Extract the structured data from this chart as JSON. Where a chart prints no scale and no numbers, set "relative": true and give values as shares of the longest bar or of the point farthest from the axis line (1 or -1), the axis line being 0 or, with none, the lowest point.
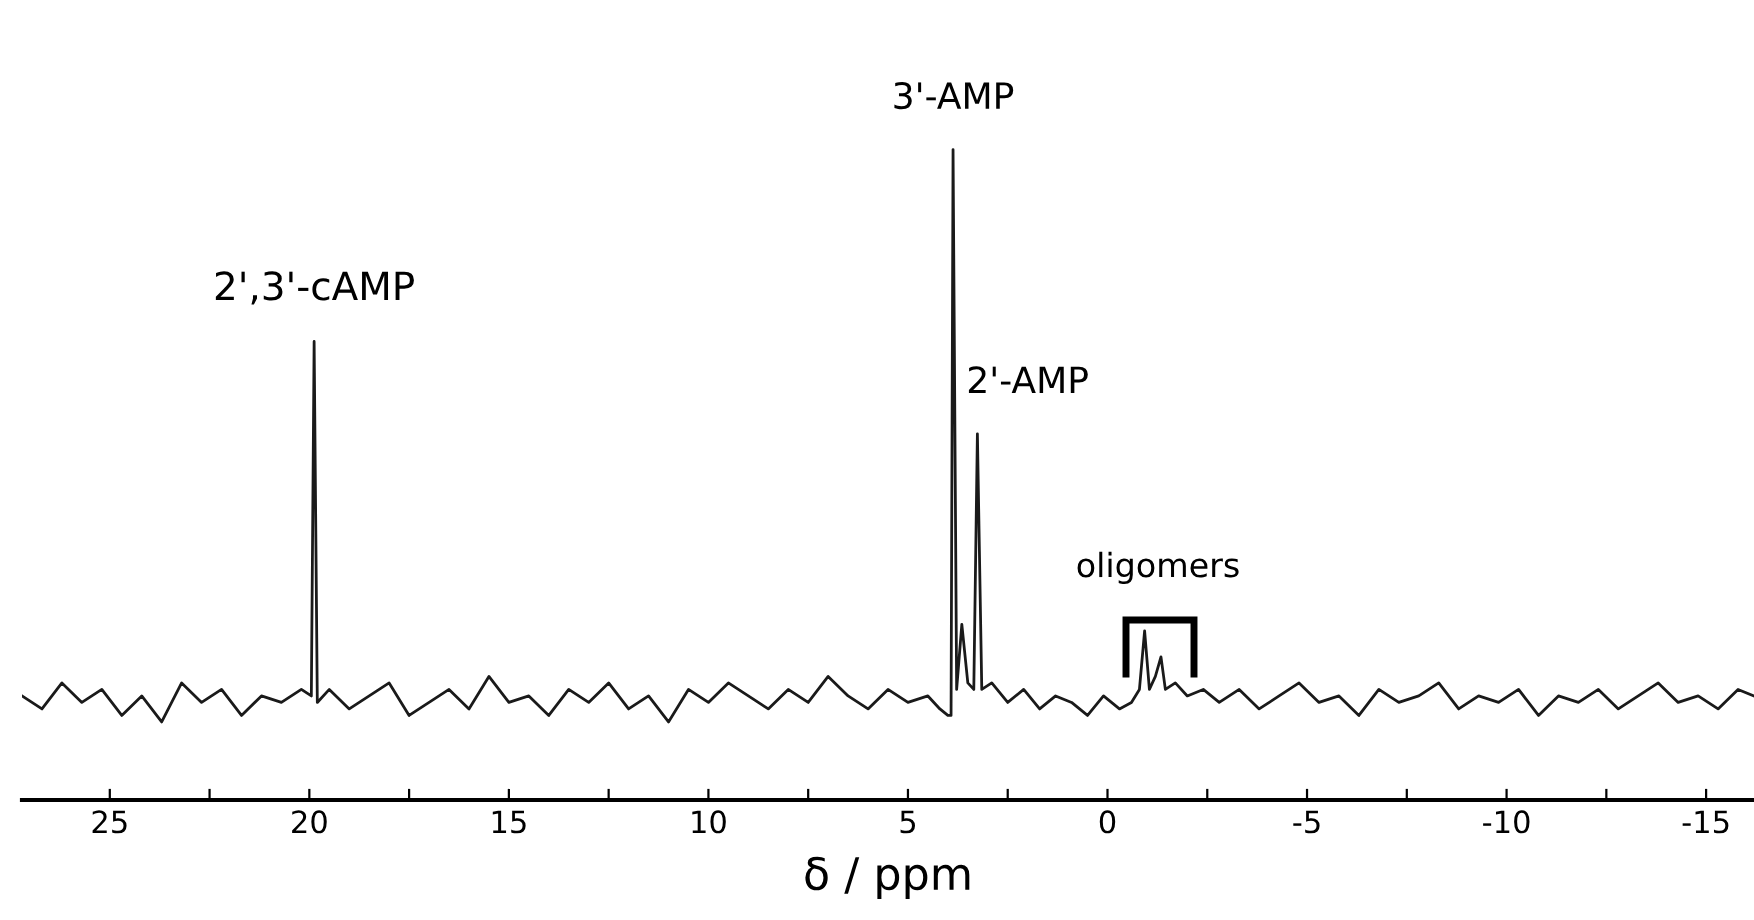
{
  "chart_data": {
    "type": "line",
    "relative": true,
    "xlabel": "δ / ppm",
    "color": "#1a1a1a",
    "x": [
      27.2,
      26.7,
      26.2,
      25.7,
      25.2,
      24.7,
      24.2,
      23.7,
      23.2,
      22.7,
      22.2,
      21.7,
      21.2,
      20.7,
      20.2,
      19.95,
      19.88,
      19.8,
      19.5,
      19.0,
      18.5,
      18.0,
      17.5,
      17.0,
      16.5,
      16.0,
      15.5,
      15.0,
      14.5,
      14.0,
      13.5,
      13.0,
      12.5,
      12.0,
      11.5,
      11.0,
      10.5,
      10.0,
      9.5,
      9.0,
      8.5,
      8.0,
      7.5,
      7.0,
      6.5,
      6.0,
      5.5,
      5.0,
      4.5,
      4.2,
      4.0,
      3.92,
      3.87,
      3.78,
      3.65,
      3.5,
      3.35,
      3.26,
      3.15,
      2.9,
      2.5,
      2.1,
      1.7,
      1.3,
      0.9,
      0.5,
      0.1,
      -0.3,
      -0.6,
      -0.8,
      -0.93,
      -1.05,
      -1.2,
      -1.34,
      -1.45,
      -1.7,
      -2.0,
      -2.4,
      -2.8,
      -3.3,
      -3.8,
      -4.3,
      -4.8,
      -5.3,
      -5.8,
      -6.3,
      -6.8,
      -7.3,
      -7.8,
      -8.3,
      -8.8,
      -9.3,
      -9.8,
      -10.3,
      -10.8,
      -11.3,
      -11.8,
      -12.3,
      -12.8,
      -13.3,
      -13.8,
      -14.3,
      -14.8,
      -15.3,
      -15.8,
      -16.2
    ],
    "values": [
      0.16,
      0.14,
      0.18,
      0.15,
      0.17,
      0.13,
      0.16,
      0.12,
      0.18,
      0.15,
      0.17,
      0.13,
      0.16,
      0.15,
      0.17,
      0.16,
      0.705,
      0.15,
      0.17,
      0.14,
      0.16,
      0.18,
      0.13,
      0.15,
      0.17,
      0.14,
      0.19,
      0.15,
      0.16,
      0.13,
      0.17,
      0.15,
      0.18,
      0.14,
      0.16,
      0.12,
      0.17,
      0.15,
      0.18,
      0.16,
      0.14,
      0.17,
      0.15,
      0.19,
      0.16,
      0.14,
      0.17,
      0.15,
      0.16,
      0.14,
      0.13,
      0.13,
      1.0,
      0.17,
      0.27,
      0.18,
      0.17,
      0.563,
      0.17,
      0.18,
      0.15,
      0.17,
      0.14,
      0.16,
      0.15,
      0.13,
      0.16,
      0.14,
      0.15,
      0.17,
      0.26,
      0.17,
      0.19,
      0.22,
      0.17,
      0.18,
      0.16,
      0.17,
      0.15,
      0.17,
      0.14,
      0.16,
      0.18,
      0.15,
      0.16,
      0.13,
      0.17,
      0.15,
      0.16,
      0.18,
      0.14,
      0.16,
      0.15,
      0.17,
      0.13,
      0.16,
      0.15,
      0.17,
      0.14,
      0.16,
      0.18,
      0.15,
      0.16,
      0.14,
      0.17,
      0.16
    ],
    "xlim": [
      27.2,
      -16.2
    ],
    "xticks": [
      25,
      {
        "value": 22.5,
        "label": null
      },
      20,
      {
        "value": 17.5,
        "label": null
      },
      15,
      {
        "value": 12.5,
        "label": null
      },
      10,
      {
        "value": 7.5,
        "label": null
      },
      5,
      {
        "value": 2.5,
        "label": null
      },
      0,
      {
        "value": -2.5,
        "label": null
      },
      -5,
      {
        "value": -7.5,
        "label": null
      },
      -10,
      {
        "value": -12.5,
        "label": null
      },
      -15
    ],
    "tick_labels": "x",
    "annotations": [
      {
        "text": "2',3'-cAMP",
        "x": 19.88,
        "y": 0.705
      },
      {
        "text": "3'-AMP",
        "x": 3.87,
        "y": 1.0
      },
      {
        "text": "2'-AMP",
        "x": 3.26,
        "y": 0.563
      },
      "oligomers"
    ]
  }
}
